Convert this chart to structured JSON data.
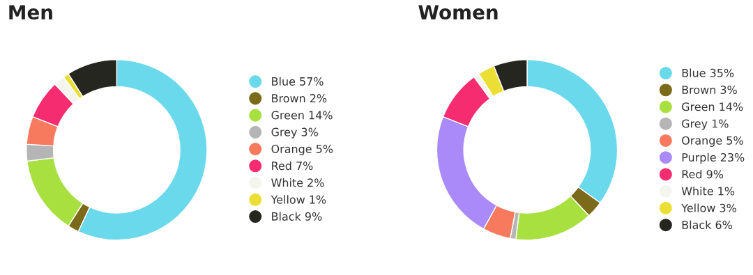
{
  "chart_data": [
    {
      "type": "donut",
      "title": "Men",
      "legend": "right",
      "categories": [
        "Blue 57%",
        "Brown 2%",
        "Green 14%",
        "Grey 3%",
        "Orange 5%",
        "Red 7%",
        "White 2%",
        "Yellow 1%",
        "Black 9%"
      ],
      "values": [
        57,
        2,
        14,
        3,
        5,
        7,
        2,
        1,
        9
      ],
      "colors": [
        "#6ad9eb",
        "#7a6a1a",
        "#a8e040",
        "#b5b5b5",
        "#f87a5e",
        "#f52d70",
        "#f5f5f0",
        "#ebdf35",
        "#262621"
      ]
    },
    {
      "type": "donut",
      "title": "Women",
      "legend": "right",
      "categories": [
        "Blue 35%",
        "Brown 3%",
        "Green 14%",
        "Grey 1%",
        "Orange 5%",
        "Purple 23%",
        "Red 9%",
        "White 1%",
        "Yellow 3%",
        "Black 6%"
      ],
      "values": [
        35,
        3,
        14,
        1,
        5,
        23,
        9,
        1,
        3,
        6
      ],
      "colors": [
        "#6ad9eb",
        "#7a6a1a",
        "#a8e040",
        "#b5b5b5",
        "#f87a5e",
        "#a98af8",
        "#f52d70",
        "#f5f5f0",
        "#ebdf35",
        "#262621"
      ]
    }
  ]
}
